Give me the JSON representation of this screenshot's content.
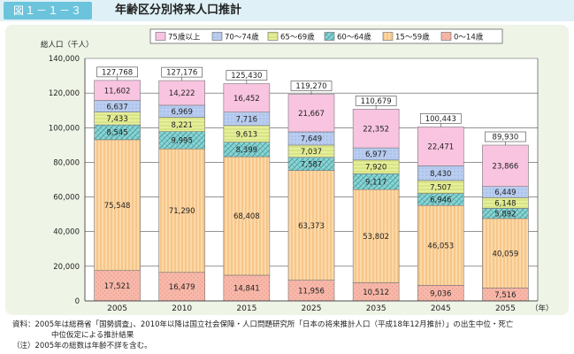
{
  "figure_tag": "図１－１－３",
  "figure_title": "年齢区分別将来人口推計",
  "notes": {
    "source_label": "資料：",
    "source_line1": "2005年は総務省「国勢調査」、2010年以降は国立社会保障・人口問題研究所「日本の将来推計人口（平成18年12月推計）」の出生中位・死亡",
    "source_line2": "中位仮定による推計結果",
    "note_line": "（注）2005年の総数は年齢不詳を含む。"
  },
  "colors": {
    "s0_14": "#f7b8aa",
    "s15_59": "#fcd9a8",
    "s60_64": "#8dd3d3",
    "s65_69": "#e6ef9a",
    "s70_74": "#b9cdf0",
    "s75": "#f8c4e0",
    "panel": "#eef4e6",
    "header": "#dff1f6",
    "tab": "#6cc4dc"
  },
  "chart_data": {
    "type": "bar",
    "stacked": true,
    "ylabel": "総人口（千人）",
    "xlabel": "（年）",
    "ylim": [
      0,
      140000
    ],
    "yticks": [
      "0",
      "20,000",
      "40,000",
      "60,000",
      "80,000",
      "100,000",
      "120,000",
      "140,000"
    ],
    "ytick_values": [
      0,
      20000,
      40000,
      60000,
      80000,
      100000,
      120000,
      140000
    ],
    "categories": [
      "2005",
      "2010",
      "2015",
      "2025",
      "2035",
      "2045",
      "2055"
    ],
    "series": [
      {
        "name": "0～14歳",
        "key": "s0_14",
        "values": [
          17521,
          16479,
          14841,
          11956,
          10512,
          9036,
          7516
        ],
        "labels": [
          "17,521",
          "16,479",
          "14,841",
          "11,956",
          "10,512",
          "9,036",
          "7,516"
        ]
      },
      {
        "name": "15～59歳",
        "key": "s15_59",
        "values": [
          75548,
          71290,
          68408,
          63373,
          53802,
          46053,
          40059
        ],
        "labels": [
          "75,548",
          "71,290",
          "68,408",
          "63,373",
          "53,802",
          "46,053",
          "40,059"
        ]
      },
      {
        "name": "60～64歳",
        "key": "s60_64",
        "values": [
          8545,
          9995,
          8399,
          7587,
          9117,
          6946,
          5892
        ],
        "labels": [
          "8,545",
          "9,995",
          "8,399",
          "7,587",
          "9,117",
          "6,946",
          "5,892"
        ]
      },
      {
        "name": "65～69歳",
        "key": "s65_69",
        "values": [
          7433,
          8221,
          9613,
          7037,
          7920,
          7507,
          6148
        ],
        "labels": [
          "7,433",
          "8,221",
          "9,613",
          "7,037",
          "7,920",
          "7,507",
          "6,148"
        ]
      },
      {
        "name": "70～74歳",
        "key": "s70_74",
        "values": [
          6637,
          6969,
          7716,
          7649,
          6977,
          8430,
          6449
        ],
        "labels": [
          "6,637",
          "6,969",
          "7,716",
          "7,649",
          "6,977",
          "8,430",
          "6,449"
        ]
      },
      {
        "name": "75歳以上",
        "key": "s75",
        "values": [
          11602,
          14222,
          16452,
          21667,
          22352,
          22471,
          23866
        ],
        "labels": [
          "11,602",
          "14,222",
          "16,452",
          "21,667",
          "22,352",
          "22,471",
          "23,866"
        ]
      }
    ],
    "totals": [
      127768,
      127176,
      125430,
      119270,
      110679,
      100443,
      89930
    ],
    "total_labels": [
      "127,768",
      "127,176",
      "125,430",
      "119,270",
      "110,679",
      "100,443",
      "89,930"
    ],
    "legend_order": [
      "s75",
      "s70_74",
      "s65_69",
      "s60_64",
      "s15_59",
      "s0_14"
    ],
    "legend_position": "top",
    "grid": true
  }
}
